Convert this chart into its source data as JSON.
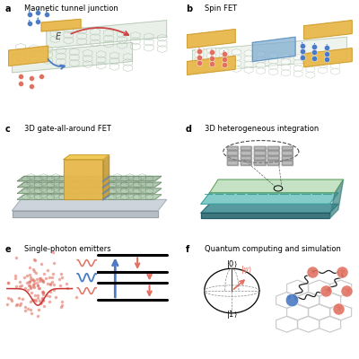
{
  "bg_color": "#ffffff",
  "panel_titles": [
    "Magnetic tunnel junction",
    "Spin FET",
    "3D gate-all-around FET",
    "3D heterogeneous integration",
    "Single-photon emitters",
    "Quantum computing and simulation"
  ],
  "gold_color": "#E8B84B",
  "blue_dot_color": "#4A7BC4",
  "red_dot_color": "#E07060",
  "graphene_fill": "#D8E4D8",
  "graphene_edge": "#B0C4B0",
  "graphene_hex_edge": "#AABFAA",
  "blue_gate": "#7AAAD0",
  "teal_color": "#5BBCB8",
  "teal_dark": "#3A8890",
  "green_layer": "#90C090",
  "base_color": "#C8CCCC",
  "label_fs": 6.5,
  "title_fs": 6.0
}
